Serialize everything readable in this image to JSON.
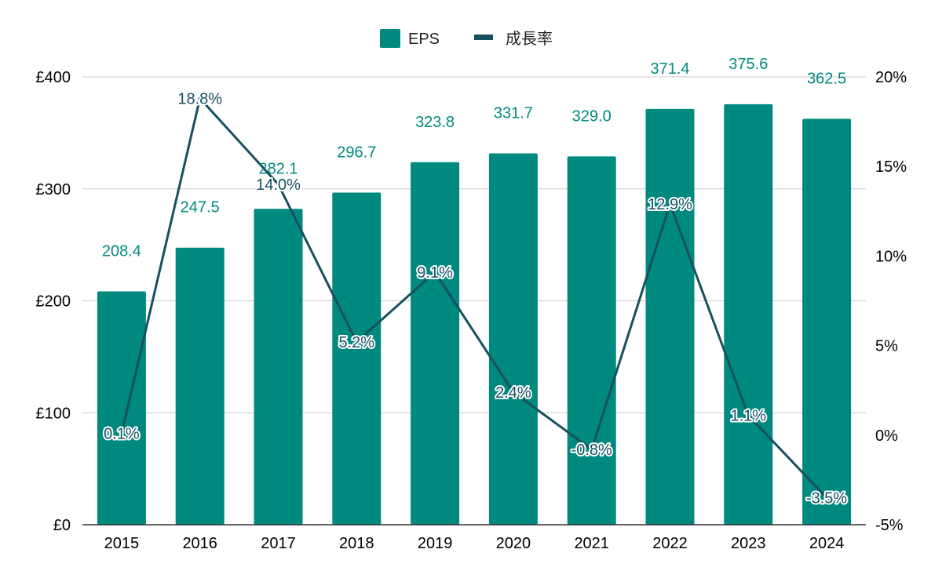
{
  "chart_data": {
    "type": "bar",
    "categories": [
      "2015",
      "2016",
      "2017",
      "2018",
      "2019",
      "2020",
      "2021",
      "2022",
      "2023",
      "2024"
    ],
    "series": [
      {
        "name": "EPS",
        "type": "bar",
        "axis": "left",
        "color": "#00897f",
        "values": [
          208.4,
          247.5,
          282.1,
          296.7,
          323.8,
          331.7,
          329.0,
          371.4,
          375.6,
          362.5
        ],
        "labels": [
          "208.4",
          "247.5",
          "282.1",
          "296.7",
          "323.8",
          "331.7",
          "329.0",
          "371.4",
          "375.6",
          "362.5"
        ]
      },
      {
        "name": "成長率",
        "type": "line",
        "axis": "right",
        "color": "#17505f",
        "values": [
          0.1,
          18.8,
          14.0,
          5.2,
          9.1,
          2.4,
          -0.8,
          12.9,
          1.1,
          -3.5
        ],
        "labels": [
          "0.1%",
          "18.8%",
          "14.0%",
          "5.2%",
          "9.1%",
          "2.4%",
          "-0.8%",
          "12.9%",
          "1.1%",
          "-3.5%"
        ]
      }
    ],
    "y_left": {
      "min": 0,
      "max": 400,
      "ticks": [
        0,
        100,
        200,
        300,
        400
      ],
      "tick_labels": [
        "£0",
        "£100",
        "£200",
        "£300",
        "£400"
      ]
    },
    "y_right": {
      "min": -5,
      "max": 20,
      "ticks": [
        -5,
        0,
        5,
        10,
        15,
        20
      ],
      "tick_labels": [
        "-5%",
        "0%",
        "5%",
        "10%",
        "15%",
        "20%"
      ]
    },
    "legend_position": "top-center",
    "grid": true,
    "title": "",
    "xlabel": "",
    "ylabel": ""
  }
}
